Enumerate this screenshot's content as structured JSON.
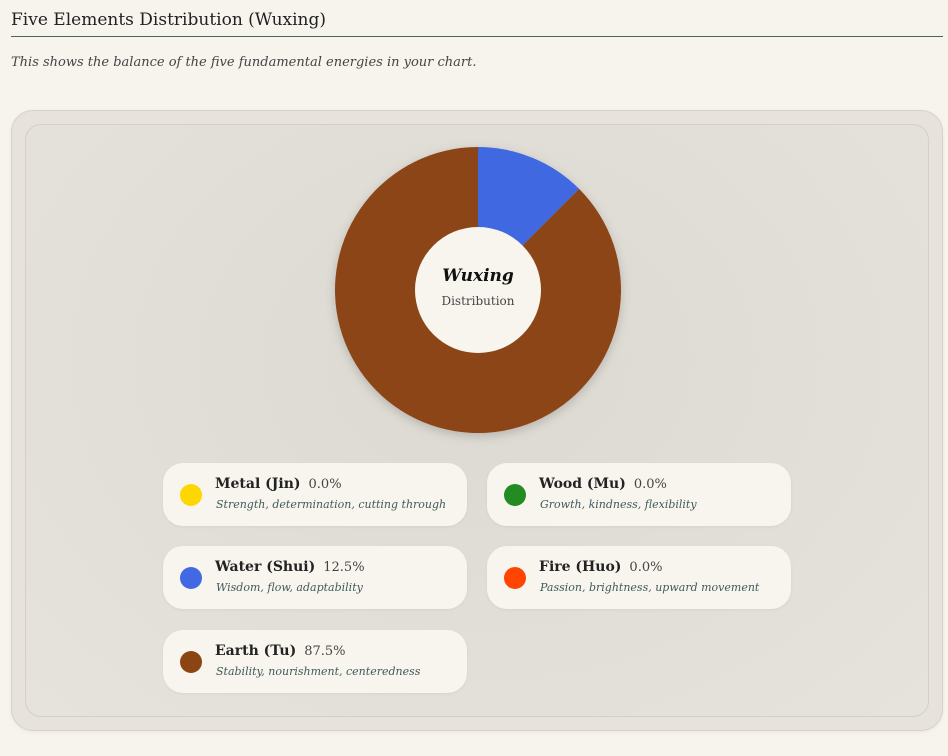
{
  "header": {
    "title": "Five Elements Distribution (Wuxing)",
    "subtitle": "This shows the balance of the five fundamental energies in your chart."
  },
  "chart_data": {
    "type": "pie",
    "title": "Wuxing",
    "subtitle": "Distribution",
    "donut": true,
    "start": "top",
    "direction": "clockwise",
    "categories": [
      "Water (Shui)",
      "Earth (Tu)",
      "Metal (Jin)",
      "Wood (Mu)",
      "Fire (Huo)"
    ],
    "values": [
      12.5,
      87.5,
      0.0,
      0.0,
      0.0
    ],
    "colors": [
      "#4169e1",
      "#8b4513",
      "#ffd700",
      "#228b22",
      "#ff4500"
    ],
    "legend_placement": "bottom"
  },
  "legend": {
    "items": [
      {
        "name": "Metal (Jin)",
        "value": "0.0%",
        "desc": "Strength, determination, cutting through",
        "color": "#ffd700"
      },
      {
        "name": "Wood (Mu)",
        "value": "0.0%",
        "desc": "Growth, kindness, flexibility",
        "color": "#228b22"
      },
      {
        "name": "Water (Shui)",
        "value": "12.5%",
        "desc": "Wisdom, flow, adaptability",
        "color": "#4169e1"
      },
      {
        "name": "Fire (Huo)",
        "value": "0.0%",
        "desc": "Passion, brightness, upward movement",
        "color": "#ff4500"
      },
      {
        "name": "Earth (Tu)",
        "value": "87.5%",
        "desc": "Stability, nourishment, centeredness",
        "color": "#8b4513"
      }
    ]
  }
}
